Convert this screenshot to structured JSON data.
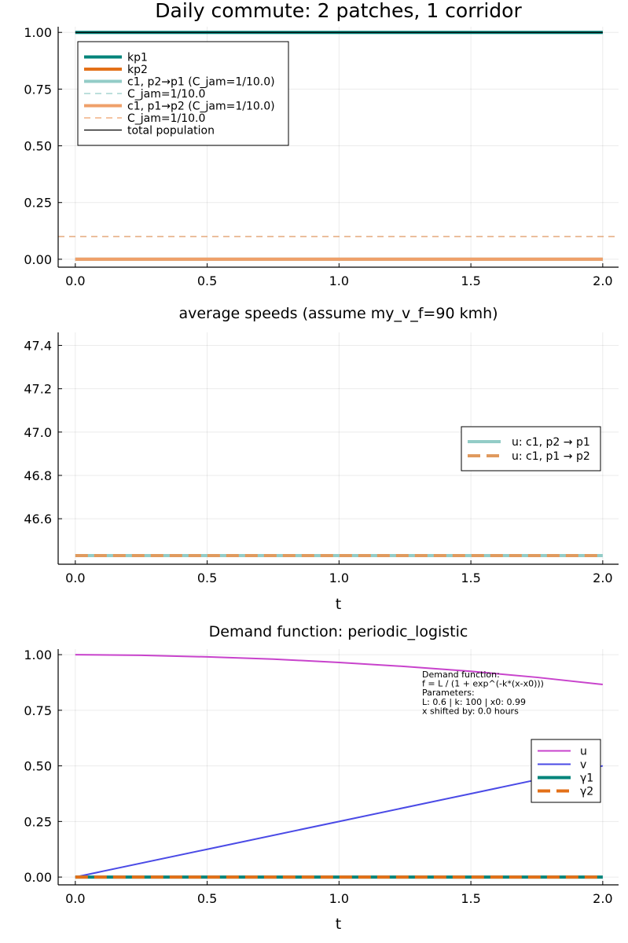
{
  "chart_data": [
    {
      "type": "line",
      "title": "Daily commute: 2 patches, 1 corridor",
      "xlabel": "",
      "ylabel": "",
      "xlim": [
        -0.065,
        2.06
      ],
      "ylim": [
        -0.035,
        1.025
      ],
      "xticks": [
        0.0,
        0.5,
        1.0,
        1.5,
        2.0
      ],
      "xtick_labels": [
        "0.0",
        "0.5",
        "1.0",
        "1.5",
        "2.0"
      ],
      "yticks": [
        0.0,
        0.25,
        0.5,
        0.75,
        1.0
      ],
      "ytick_labels": [
        "0.00",
        "0.25",
        "0.50",
        "0.75",
        "1.00"
      ],
      "grid": true,
      "legend_position": "top-left",
      "series": [
        {
          "name": "kp1",
          "color": "#00847a",
          "width": 4,
          "dash": "solid",
          "x": [
            0,
            2
          ],
          "y": [
            1.0,
            1.0
          ]
        },
        {
          "name": "kp2",
          "color": "#e37018",
          "width": 4,
          "dash": "solid",
          "x": [
            0,
            2
          ],
          "y": [
            0.0,
            0.0
          ]
        },
        {
          "name": "c1, p2→p1 (C_jam=1/10.0)",
          "color": "#93ccc7",
          "width": 4,
          "dash": "solid",
          "x": [
            0,
            2
          ],
          "y": [
            0.0,
            0.0
          ]
        },
        {
          "name": "C_jam=1/10.0",
          "color": "#93ccc7",
          "width": 1.3,
          "dash": "8,6",
          "hline": 0.1
        },
        {
          "name": "c1, p1→p2 (C_jam=1/10.0)",
          "color": "#efa06a",
          "width": 4,
          "dash": "solid",
          "x": [
            0,
            2
          ],
          "y": [
            0.0,
            0.0
          ]
        },
        {
          "name": "C_jam=1/10.0",
          "color": "#efa06a",
          "width": 1.3,
          "dash": "8,6",
          "hline": 0.1
        },
        {
          "name": "total population",
          "color": "#000000",
          "width": 1.3,
          "dash": "solid",
          "x": [
            0,
            2
          ],
          "y": [
            1.0,
            1.0
          ]
        }
      ]
    },
    {
      "type": "line",
      "title": "average speeds (assume my_v_f=90 kmh)",
      "xlabel": "t",
      "ylabel": "",
      "xlim": [
        -0.065,
        2.06
      ],
      "ylim": [
        46.39,
        47.46
      ],
      "xticks": [
        0.0,
        0.5,
        1.0,
        1.5,
        2.0
      ],
      "xtick_labels": [
        "0.0",
        "0.5",
        "1.0",
        "1.5",
        "2.0"
      ],
      "yticks": [
        46.6,
        46.8,
        47.0,
        47.2,
        47.4
      ],
      "ytick_labels": [
        "46.6",
        "46.8",
        "47.0",
        "47.2",
        "47.4"
      ],
      "grid": true,
      "legend_position": "right",
      "series": [
        {
          "name": "u: c1, p2 → p1",
          "color": "#93ccc7",
          "width": 4,
          "dash": "solid",
          "x": [
            0,
            2
          ],
          "y": [
            46.43,
            46.43
          ]
        },
        {
          "name": "u: c1, p1 → p2",
          "color": "#e09a5e",
          "width": 4,
          "dash": "16,8",
          "x": [
            0,
            2
          ],
          "y": [
            46.43,
            46.43
          ]
        }
      ]
    },
    {
      "type": "line",
      "title": "Demand function: periodic_logistic",
      "xlabel": "t",
      "ylabel": "",
      "xlim": [
        -0.065,
        2.06
      ],
      "ylim": [
        -0.035,
        1.025
      ],
      "xticks": [
        0.0,
        0.5,
        1.0,
        1.5,
        2.0
      ],
      "xtick_labels": [
        "0.0",
        "0.5",
        "1.0",
        "1.5",
        "2.0"
      ],
      "yticks": [
        0.0,
        0.25,
        0.5,
        0.75,
        1.0
      ],
      "ytick_labels": [
        "0.00",
        "0.25",
        "0.50",
        "0.75",
        "1.00"
      ],
      "grid": true,
      "legend_position": "right",
      "annotation": [
        "Demand function:",
        "f = L / (1 + exp^(-k*(x-x0)))",
        "Parameters:",
        "L: 0.6 | k: 100 | x0: 0.99",
        "x shifted by: 0.0 hours"
      ],
      "series": [
        {
          "name": "u",
          "color": "#c843cc",
          "width": 2,
          "dash": "solid",
          "x": [
            0.0,
            0.25,
            0.5,
            0.75,
            1.0,
            1.25,
            1.5,
            1.75,
            2.0
          ],
          "y": [
            1.0,
            0.997,
            0.99,
            0.98,
            0.965,
            0.947,
            0.925,
            0.898,
            0.866
          ]
        },
        {
          "name": "v",
          "color": "#4a4ae6",
          "width": 2,
          "dash": "solid",
          "x": [
            0.0,
            0.5,
            1.0,
            1.5,
            2.0
          ],
          "y": [
            0.0,
            0.125,
            0.25,
            0.375,
            0.5
          ]
        },
        {
          "name": "γ1",
          "color": "#00847a",
          "width": 4,
          "dash": "solid",
          "x": [
            0,
            2
          ],
          "y": [
            0.0,
            0.0
          ]
        },
        {
          "name": "γ2",
          "color": "#e37018",
          "width": 4,
          "dash": "16,8",
          "x": [
            0,
            2
          ],
          "y": [
            0.0,
            0.0
          ]
        }
      ]
    }
  ]
}
